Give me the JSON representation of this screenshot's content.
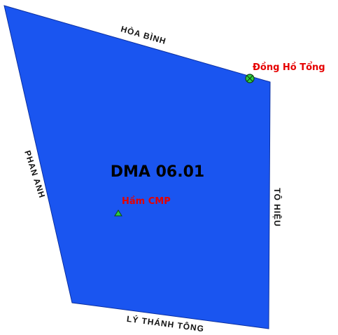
{
  "map": {
    "zone_label": "DMA 06.01",
    "zone_color": "#1a55f0",
    "streets": {
      "north": "HÒA BÌNH",
      "west": "PHAN ANH",
      "east": "TÔ HIỆU",
      "south": "LÝ THÁNH TÔNG"
    },
    "features": {
      "master_meter": {
        "label": "Đồng Hồ Tổng",
        "icon": "meter-circle-x-icon",
        "color": "#2ecc40"
      },
      "tunnel": {
        "label": "Hầm CMP",
        "icon": "triangle-icon",
        "color": "#2ecc40"
      }
    },
    "label_color": "#e60000"
  }
}
